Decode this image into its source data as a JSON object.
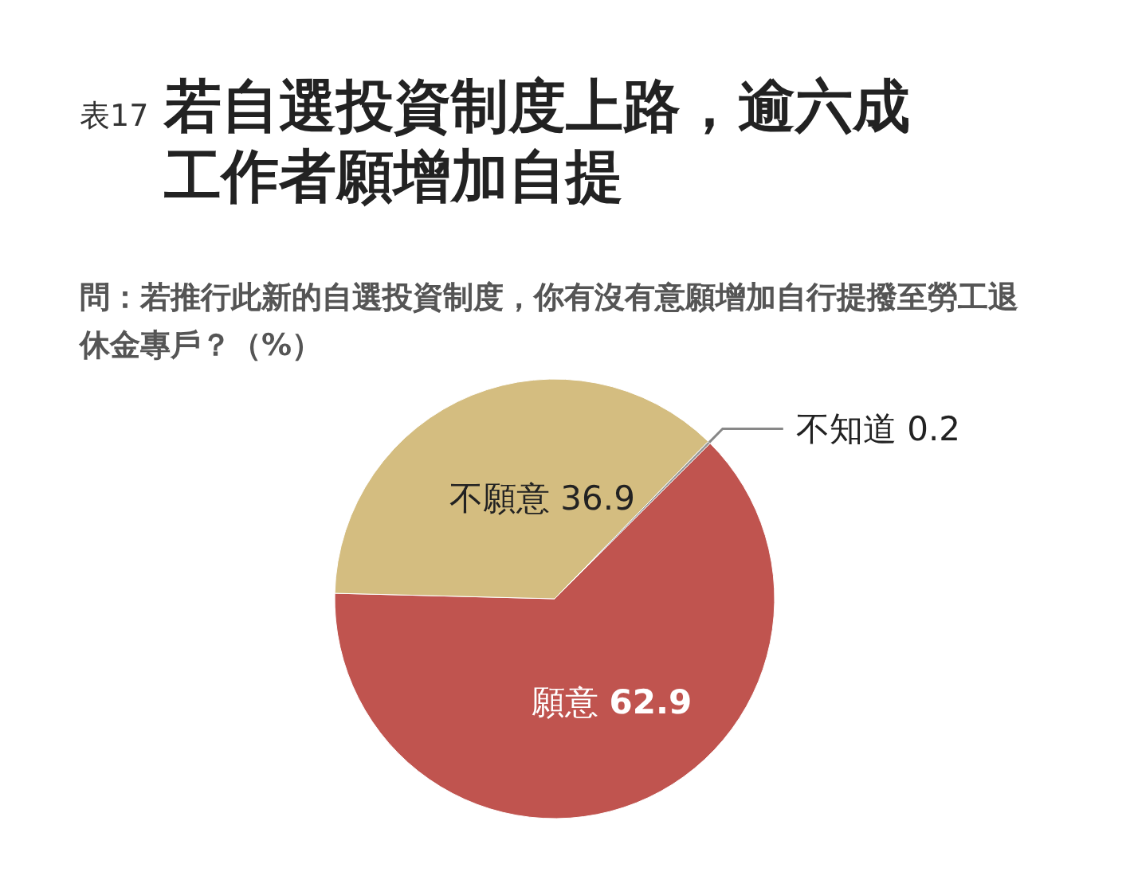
{
  "chart_data": {
    "type": "pie",
    "title": "若自選投資制度上路，逾六成工作者願增加自提",
    "subtitle": "問：若推行此新的自選投資制度，你有沒有意願增加自行提撥至勞工退休金專戶？（%）",
    "annotations": [
      "表17"
    ],
    "categories": [
      "願意",
      "不願意",
      "不知道"
    ],
    "values": [
      62.9,
      36.9,
      0.2
    ],
    "colors": [
      "#c0544f",
      "#d4bd80",
      "#999999"
    ],
    "data_labels": true
  }
}
